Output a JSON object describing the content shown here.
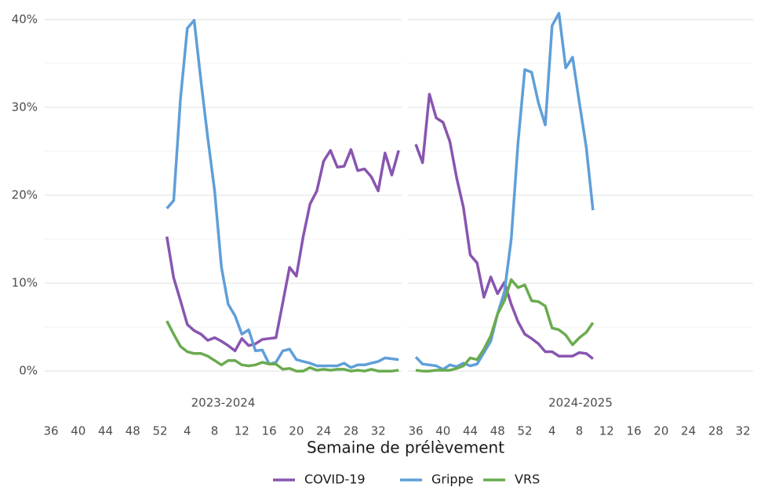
{
  "chart_data": {
    "type": "line",
    "xlabel": "Semaine de prélèvement",
    "categories": [
      36,
      37,
      38,
      39,
      40,
      41,
      42,
      43,
      44,
      45,
      46,
      47,
      48,
      49,
      50,
      51,
      52,
      1,
      2,
      3,
      4,
      5,
      6,
      7,
      8,
      9,
      10,
      11,
      12,
      13,
      14,
      15,
      16,
      17,
      18,
      19,
      20,
      21,
      22,
      23,
      24,
      25,
      26,
      27,
      28,
      29,
      30,
      31,
      32,
      33,
      34,
      35
    ],
    "xticks": [
      36,
      40,
      44,
      48,
      52,
      4,
      8,
      12,
      16,
      20,
      24,
      28,
      32
    ],
    "ylim": [
      -1.5,
      41.5
    ],
    "yticks": [
      {
        "value": 0,
        "label": "0%"
      },
      {
        "value": 10,
        "label": "10%"
      },
      {
        "value": 20,
        "label": "20%"
      },
      {
        "value": 30,
        "label": "30%"
      },
      {
        "value": 40,
        "label": "40%"
      }
    ],
    "yminor": [
      5,
      15,
      25,
      35
    ],
    "grid": true,
    "legend": "bottom",
    "facets": [
      {
        "label": "2023-2024",
        "series": [
          {
            "name": "COVID-19",
            "color": "#8855b0",
            "values": [
              null,
              null,
              null,
              null,
              null,
              null,
              null,
              null,
              null,
              null,
              null,
              null,
              null,
              null,
              null,
              null,
              null,
              15.3,
              10.6,
              8.0,
              5.3,
              4.6,
              4.2,
              3.5,
              3.8,
              3.4,
              2.9,
              2.3,
              3.7,
              2.9,
              3.1,
              3.6,
              3.7,
              3.8,
              7.8,
              11.8,
              10.8,
              15.3,
              19.0,
              20.5,
              23.9,
              25.1,
              23.2,
              23.3,
              25.2,
              22.8,
              23.0,
              22.1,
              20.5,
              24.8,
              22.3,
              25.1
            ]
          },
          {
            "name": "Grippe",
            "color": "#5f9fd8",
            "values": [
              null,
              null,
              null,
              null,
              null,
              null,
              null,
              null,
              null,
              null,
              null,
              null,
              null,
              null,
              null,
              null,
              null,
              18.5,
              19.4,
              31.0,
              39.0,
              39.9,
              33.0,
              26.5,
              20.5,
              11.8,
              7.6,
              6.3,
              4.2,
              4.7,
              2.3,
              2.4,
              0.8,
              1.0,
              2.3,
              2.5,
              1.3,
              1.1,
              0.9,
              0.6,
              0.6,
              0.6,
              0.6,
              0.9,
              0.4,
              0.7,
              0.7,
              0.9,
              1.1,
              1.5,
              1.4,
              1.3
            ]
          },
          {
            "name": "VRS",
            "color": "#6aab4f",
            "values": [
              null,
              null,
              null,
              null,
              null,
              null,
              null,
              null,
              null,
              null,
              null,
              null,
              null,
              null,
              null,
              null,
              null,
              5.7,
              4.2,
              2.8,
              2.2,
              2.0,
              2.0,
              1.7,
              1.2,
              0.7,
              1.2,
              1.2,
              0.7,
              0.6,
              0.7,
              1.0,
              0.8,
              0.8,
              0.2,
              0.3,
              0.0,
              0.0,
              0.4,
              0.1,
              0.2,
              0.1,
              0.2,
              0.2,
              0.0,
              0.1,
              0.0,
              0.2,
              0.0,
              0.0,
              0.0,
              0.1
            ]
          }
        ]
      },
      {
        "label": "2024-2025",
        "series": [
          {
            "name": "COVID-19",
            "color": "#8855b0",
            "values": [
              25.8,
              23.7,
              31.5,
              28.8,
              28.3,
              26.1,
              22.0,
              18.6,
              13.2,
              12.3,
              8.4,
              10.7,
              8.8,
              10.1,
              7.6,
              5.6,
              4.2,
              3.7,
              3.1,
              2.2,
              2.2,
              1.7,
              1.7,
              1.7,
              2.1,
              2.0,
              1.4,
              null,
              null,
              null,
              null,
              null,
              null,
              null,
              null,
              null,
              null,
              null,
              null,
              null,
              null,
              null,
              null,
              null,
              null,
              null,
              null,
              null,
              null,
              null,
              null,
              null
            ]
          },
          {
            "name": "Grippe",
            "color": "#5f9fd8",
            "values": [
              1.6,
              0.8,
              0.7,
              0.6,
              0.2,
              0.7,
              0.5,
              0.9,
              0.6,
              0.8,
              2.1,
              3.4,
              6.5,
              9.0,
              15.0,
              26.0,
              34.3,
              34.0,
              30.5,
              28.0,
              39.3,
              40.7,
              34.5,
              35.7,
              30.5,
              25.5,
              18.3,
              null,
              null,
              null,
              null,
              null,
              null,
              null,
              null,
              null,
              null,
              null,
              null,
              null,
              null,
              null,
              null,
              null,
              null,
              null,
              null,
              null,
              null,
              null,
              null,
              null
            ]
          },
          {
            "name": "VRS",
            "color": "#6aab4f",
            "values": [
              0.1,
              0.0,
              0.0,
              0.1,
              0.1,
              0.1,
              0.3,
              0.6,
              1.5,
              1.3,
              2.5,
              4.0,
              6.5,
              8.0,
              10.4,
              9.5,
              9.8,
              8.0,
              7.9,
              7.4,
              4.9,
              4.7,
              4.1,
              3.0,
              3.8,
              4.4,
              5.5,
              null,
              null,
              null,
              null,
              null,
              null,
              null,
              null,
              null,
              null,
              null,
              null,
              null,
              null,
              null,
              null,
              null,
              null,
              null,
              null,
              null,
              null,
              null,
              null,
              null
            ]
          }
        ]
      }
    ]
  }
}
